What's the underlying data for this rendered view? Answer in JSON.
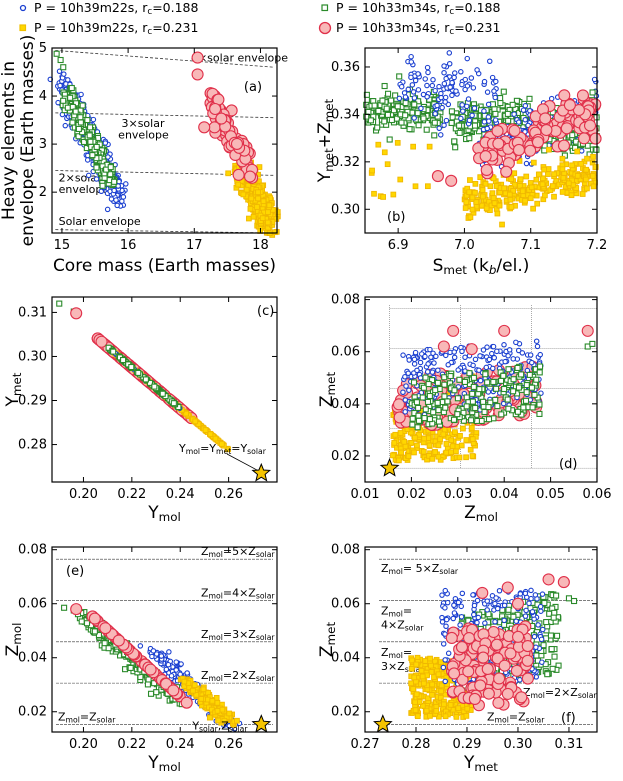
{
  "legend": [
    {
      "key": "s1",
      "label": "P = 10h39m22s, r",
      "sub": "c",
      "tail": "=0.188",
      "color": "#1a3fd0",
      "fill": "#ffffff",
      "shape": "circle"
    },
    {
      "key": "s2",
      "label": "P = 10h33m34s, r",
      "sub": "c",
      "tail": "=0.188",
      "color": "#2a8a2a",
      "fill": "#ffffff",
      "shape": "square"
    },
    {
      "key": "s3",
      "label": "P = 10h39m22s, r",
      "sub": "c",
      "tail": "=0.231",
      "color": "#f0c000",
      "fill": "#ffd700",
      "shape": "square"
    },
    {
      "key": "s4",
      "label": "P = 10h33m34s, r",
      "sub": "c",
      "tail": "=0.231",
      "color": "#e0304a",
      "fill": "#f8b8b8",
      "shape": "bigcircle"
    }
  ],
  "colors": {
    "s1": "#1a3fd0",
    "s2": "#2a8a2a",
    "s3": "#f0b800",
    "s4": "#e0304a",
    "s4fill": "#f8b8b8",
    "s3fill": "#ffd700",
    "star": "#f5c400"
  },
  "chart_data": [
    {
      "id": "a",
      "type": "scatter",
      "letter": "(a)",
      "xlabel": "Core mass (Earth masses)",
      "ylabel_lines": [
        "Heavy elements in",
        "envelope (Earth masses)"
      ],
      "xlim": [
        14.85,
        18.25
      ],
      "ylim": [
        1.15,
        5.0
      ],
      "xticks": [
        15,
        16,
        17,
        18
      ],
      "xticklabels": [
        "15",
        "16",
        "17",
        "18"
      ],
      "yticks": [
        2,
        3,
        4,
        5
      ],
      "yticklabels": [
        "2",
        "3",
        "4",
        "5"
      ],
      "reference_lines": [
        {
          "x": [
            14.9,
            18.2
          ],
          "y": [
            4.95,
            4.6
          ],
          "label": "4×solar envelope"
        },
        {
          "x": [
            14.9,
            18.2
          ],
          "y": [
            3.65,
            3.55
          ],
          "label": "3×solar envelope"
        },
        {
          "x": [
            14.9,
            18.2
          ],
          "y": [
            2.45,
            2.35
          ],
          "label": "2×solar envelope"
        },
        {
          "x": [
            14.9,
            18.2
          ],
          "y": [
            1.22,
            1.15
          ],
          "label": "Solar envelope"
        }
      ]
    },
    {
      "id": "b",
      "type": "scatter",
      "letter": "(b)",
      "xlabel": "S",
      "xlabel_sub": "met",
      "xlabel_tail": " (k",
      "xlabel_tail2": "/el.)",
      "xlabel_b": "b",
      "ylabel": "Y",
      "ylabel_sub": "met",
      "ylabel_mid": "+Z",
      "ylabel_sub2": "met",
      "xlim": [
        6.85,
        7.2
      ],
      "ylim": [
        0.29,
        0.368
      ],
      "xticks": [
        6.9,
        7.0,
        7.1,
        7.2
      ],
      "xticklabels": [
        "6.9",
        "7.0",
        "7.1",
        "7.2"
      ],
      "yticks": [
        0.3,
        0.32,
        0.34,
        0.36
      ],
      "yticklabels": [
        "0.30",
        "0.32",
        "0.34",
        "0.36"
      ]
    },
    {
      "id": "c",
      "type": "scatter",
      "letter": "(c)",
      "xlabel": "Y",
      "xlabel_sub": "mol",
      "ylabel": "Y",
      "ylabel_sub": "met",
      "xlim": [
        0.187,
        0.28
      ],
      "ylim": [
        0.2715,
        0.3135
      ],
      "xticks": [
        0.2,
        0.22,
        0.24,
        0.26
      ],
      "xticklabels": [
        "0.20",
        "0.22",
        "0.24",
        "0.26"
      ],
      "yticks": [
        0.28,
        0.29,
        0.3,
        0.31
      ],
      "yticklabels": [
        "0.28",
        "0.29",
        "0.30",
        "0.31"
      ],
      "annotation": "Y",
      "annotation_parts": [
        "Y",
        "mol",
        "=Y",
        "met",
        "=Y",
        "solar"
      ],
      "star": {
        "x": 0.2735,
        "y": 0.2735
      }
    },
    {
      "id": "d",
      "type": "scatter",
      "letter": "(d)",
      "xlabel": "Z",
      "xlabel_sub": "mol",
      "ylabel": "Z",
      "ylabel_sub": "met",
      "xlim": [
        0.01,
        0.06
      ],
      "ylim": [
        0.01,
        0.081
      ],
      "xticks": [
        0.01,
        0.02,
        0.03,
        0.04,
        0.05,
        0.06
      ],
      "xticklabels": [
        "0.01",
        "0.02",
        "0.03",
        "0.04",
        "0.05",
        "0.06"
      ],
      "yticks": [
        0.02,
        0.04,
        0.06,
        0.08
      ],
      "yticklabels": [
        "0.02",
        "0.04",
        "0.06",
        "0.08"
      ],
      "star": {
        "x": 0.0153,
        "y": 0.0153
      }
    },
    {
      "id": "e",
      "type": "scatter",
      "letter": "(e)",
      "xlabel": "Y",
      "xlabel_sub": "mol",
      "ylabel": "Z",
      "ylabel_sub": "mol",
      "xlim": [
        0.187,
        0.28
      ],
      "ylim": [
        0.0125,
        0.081
      ],
      "xticks": [
        0.2,
        0.22,
        0.24,
        0.26
      ],
      "xticklabels": [
        "0.20",
        "0.22",
        "0.24",
        "0.26"
      ],
      "yticks": [
        0.02,
        0.04,
        0.06,
        0.08
      ],
      "yticklabels": [
        "0.02",
        "0.04",
        "0.06",
        "0.08"
      ],
      "hlines": [
        {
          "y": 0.0765,
          "label": "Z",
          "sub": "mol",
          "mid": "=5×Z",
          "sub2": "solar"
        },
        {
          "y": 0.0612,
          "label": "Z",
          "sub": "mol",
          "mid": "=4×Z",
          "sub2": "solar"
        },
        {
          "y": 0.0459,
          "label": "Z",
          "sub": "mol",
          "mid": "=3×Z",
          "sub2": "solar"
        },
        {
          "y": 0.0306,
          "label": "Z",
          "sub": "mol",
          "mid": "=2×Z",
          "sub2": "solar"
        },
        {
          "y": 0.0153,
          "label": "Z",
          "sub": "mol",
          "mid": "=Z",
          "sub2": "solar"
        }
      ],
      "star_label_parts": [
        "Y",
        "solar",
        ",Z",
        "solar"
      ],
      "star": {
        "x": 0.2735,
        "y": 0.0153
      }
    },
    {
      "id": "f",
      "type": "scatter",
      "letter": "(f)",
      "xlabel": "Y",
      "xlabel_sub": "met",
      "ylabel": "Z",
      "ylabel_sub": "met",
      "xlim": [
        0.27,
        0.3155
      ],
      "ylim": [
        0.0125,
        0.081
      ],
      "xticks": [
        0.27,
        0.28,
        0.29,
        0.3,
        0.31
      ],
      "xticklabels": [
        "0.27",
        "0.28",
        "0.29",
        "0.30",
        "0.31"
      ],
      "yticks": [
        0.02,
        0.04,
        0.06,
        0.08
      ],
      "yticklabels": [
        "0.02",
        "0.04",
        "0.06",
        "0.08"
      ],
      "hlines": [
        {
          "y": 0.0765,
          "label": "Z",
          "sub": "mol",
          "mid": "= 5×Z",
          "sub2": "solar"
        },
        {
          "y": 0.0612,
          "label": "Z",
          "sub": "mol",
          "mid": "=",
          "sub2": "",
          "line2": "4×Z",
          "line2sub": "solar"
        },
        {
          "y": 0.0459,
          "label": "Z",
          "sub": "mol",
          "mid": "=",
          "sub2": "",
          "line2": "3×Z",
          "line2sub": "solar"
        },
        {
          "y": 0.0306,
          "label": "Z",
          "sub": "mol",
          "mid": "=2×Z",
          "sub2": "solar"
        },
        {
          "y": 0.0153,
          "label": "Z",
          "sub": "mol",
          "mid": "=Z",
          "sub2": "solar"
        }
      ],
      "star": {
        "x": 0.2735,
        "y": 0.0153
      }
    }
  ]
}
